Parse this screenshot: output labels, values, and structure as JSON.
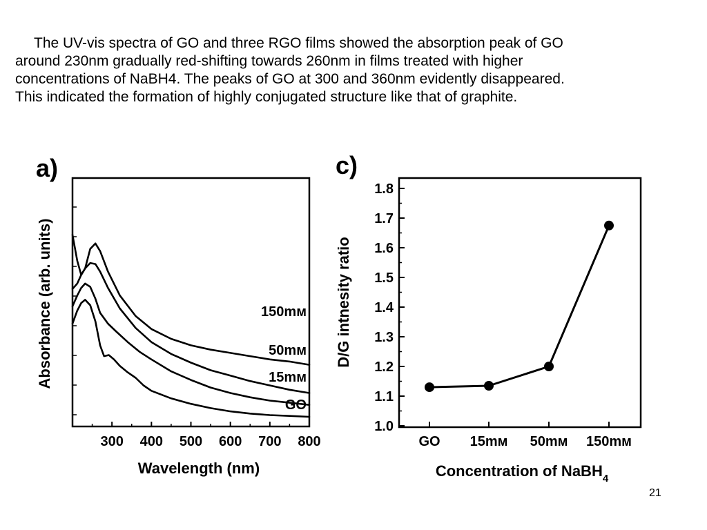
{
  "body_text": {
    "lines": [
      "The UV-vis spectra of GO and three RGO films showed the absorption peak of GO",
      "around 230nm gradually red-shifting towards 260nm in films treated with higher",
      "concentrations of NaBH4. The peaks of GO at 300 and 360nm evidently disappeared.",
      "This indicated the formation of highly conjugated structure like that of graphite."
    ]
  },
  "page_number": "21",
  "chart_data": [
    {
      "type": "line",
      "panel_label": "a)",
      "xlabel": "Wavelength (nm)",
      "ylabel": "Absorbance (arb. units)",
      "xlim": [
        200,
        800
      ],
      "x_ticks": [
        "300",
        "400",
        "500",
        "600",
        "700",
        "800"
      ],
      "grid": false,
      "series": [
        {
          "name": "150mм",
          "x": [
            200,
            212,
            222,
            232,
            245,
            258,
            270,
            290,
            320,
            360,
            400,
            450,
            500,
            550,
            600,
            650,
            700,
            750,
            800
          ],
          "y": [
            0.84,
            0.72,
            0.655,
            0.685,
            0.775,
            0.8,
            0.765,
            0.67,
            0.56,
            0.465,
            0.405,
            0.36,
            0.33,
            0.31,
            0.295,
            0.28,
            0.265,
            0.255,
            0.24
          ]
        },
        {
          "name": "50mм",
          "x": [
            200,
            212,
            222,
            232,
            245,
            258,
            270,
            290,
            320,
            360,
            400,
            450,
            500,
            550,
            600,
            650,
            700,
            750,
            800
          ],
          "y": [
            0.59,
            0.615,
            0.655,
            0.685,
            0.71,
            0.705,
            0.67,
            0.595,
            0.5,
            0.41,
            0.345,
            0.29,
            0.25,
            0.215,
            0.19,
            0.165,
            0.145,
            0.125,
            0.11
          ]
        },
        {
          "name": "15mм",
          "x": [
            200,
            212,
            222,
            232,
            245,
            258,
            270,
            290,
            310,
            340,
            370,
            400,
            450,
            500,
            550,
            600,
            650,
            700,
            750,
            800
          ],
          "y": [
            0.51,
            0.56,
            0.595,
            0.615,
            0.6,
            0.545,
            0.48,
            0.43,
            0.395,
            0.345,
            0.3,
            0.265,
            0.21,
            0.17,
            0.135,
            0.11,
            0.09,
            0.075,
            0.065,
            0.055
          ]
        },
        {
          "name": "GO",
          "x": [
            200,
            212,
            222,
            232,
            245,
            258,
            270,
            280,
            292,
            305,
            320,
            340,
            360,
            380,
            400,
            450,
            500,
            550,
            600,
            650,
            700,
            750,
            800
          ],
          "y": [
            0.43,
            0.49,
            0.525,
            0.54,
            0.515,
            0.44,
            0.33,
            0.28,
            0.285,
            0.265,
            0.235,
            0.205,
            0.18,
            0.145,
            0.12,
            0.085,
            0.06,
            0.04,
            0.025,
            0.015,
            0.008,
            0.004,
            0.0
          ]
        }
      ]
    },
    {
      "type": "line",
      "panel_label": "c)",
      "xlabel": "Concentration of NaBH",
      "xlabel_subscript": "4",
      "ylabel": "D/G intnesity ratio",
      "categories": [
        "GO",
        "15mм",
        "50mм",
        "150mм"
      ],
      "ylim": [
        1.0,
        1.8
      ],
      "y_ticks": [
        "1.0",
        "1.1",
        "1.2",
        "1.3",
        "1.4",
        "1.5",
        "1.6",
        "1.7",
        "1.8"
      ],
      "grid": false,
      "values": [
        1.13,
        1.135,
        1.2,
        1.675
      ]
    }
  ]
}
